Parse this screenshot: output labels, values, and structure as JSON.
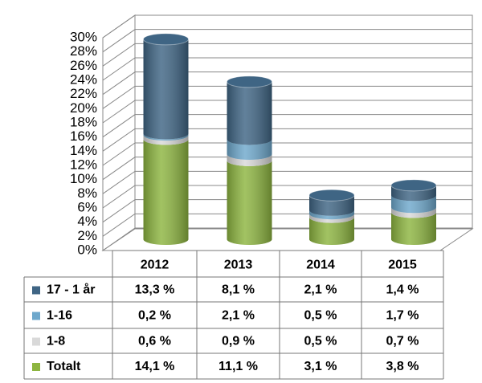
{
  "chart_data": {
    "type": "stacked-cylinder",
    "categories": [
      "2012",
      "2013",
      "2014",
      "2015"
    ],
    "series": [
      {
        "name": "Totalt",
        "color": "#8db540",
        "values": [
          14.1,
          11.1,
          3.1,
          3.8
        ],
        "value_labels": [
          "14,1 %",
          "11,1 %",
          "3,1 %",
          "3,8 %"
        ]
      },
      {
        "name": "1-8",
        "color": "#d9d9d9",
        "values": [
          0.6,
          0.9,
          0.5,
          0.7
        ],
        "value_labels": [
          "0,6 %",
          "0,9 %",
          "0,5 %",
          "0,7 %"
        ]
      },
      {
        "name": "1-16",
        "color": "#6ea8cc",
        "values": [
          0.2,
          2.1,
          0.5,
          1.7
        ],
        "value_labels": [
          "0,2 %",
          "2,1 %",
          "0,5 %",
          "1,7 %"
        ]
      },
      {
        "name": "17  - 1 år",
        "color": "#3f6584",
        "values": [
          13.3,
          8.1,
          2.1,
          1.4
        ],
        "value_labels": [
          "13,3 %",
          "8,1 %",
          "2,1 %",
          "1,4 %"
        ]
      }
    ],
    "ylim": [
      0,
      30
    ],
    "yticks": [
      {
        "value": 0,
        "label": "0%"
      },
      {
        "value": 2,
        "label": "2%"
      },
      {
        "value": 4,
        "label": "4%"
      },
      {
        "value": 6,
        "label": "6%"
      },
      {
        "value": 8,
        "label": "8%"
      },
      {
        "value": 10,
        "label": "10%"
      },
      {
        "value": 12,
        "label": "12%"
      },
      {
        "value": 14,
        "label": "14%"
      },
      {
        "value": 16,
        "label": "16%"
      },
      {
        "value": 18,
        "label": "18%"
      },
      {
        "value": 20,
        "label": "20%"
      },
      {
        "value": 22,
        "label": "22%"
      },
      {
        "value": 24,
        "label": "24%"
      },
      {
        "value": 26,
        "label": "26%"
      },
      {
        "value": 28,
        "label": "28%"
      },
      {
        "value": 30,
        "label": "30%"
      }
    ],
    "grid": true
  }
}
